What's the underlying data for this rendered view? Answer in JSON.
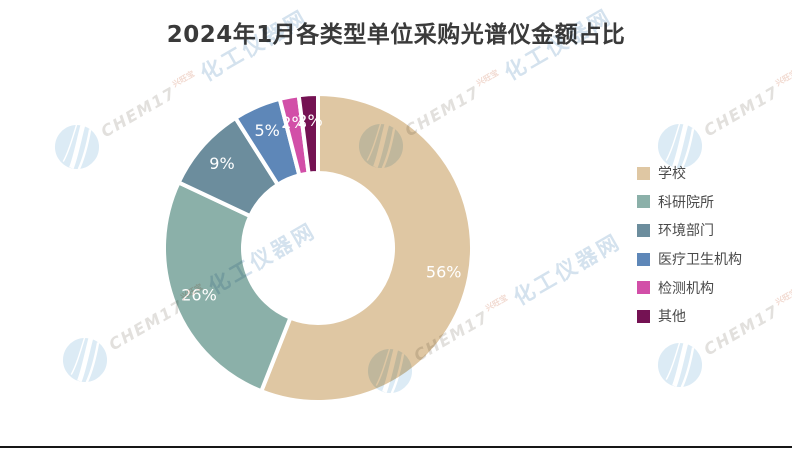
{
  "title": "2024年1月各类型单位采购光谱仪金额占比",
  "chart_data": {
    "type": "pie",
    "title": "2024年1月各类型单位采购光谱仪金额占比",
    "categories": [
      "学校",
      "科研院所",
      "环境部门",
      "医疗卫生机构",
      "检测机构",
      "其他"
    ],
    "values": [
      56,
      26,
      9,
      5,
      2,
      2
    ],
    "unit": "%",
    "labels": [
      "56%",
      "26%",
      "9%",
      "5%",
      "2%",
      "2%"
    ],
    "colors": [
      "#DFC7A3",
      "#8BB0A9",
      "#6C8D9D",
      "#5E87B8",
      "#D24FA8",
      "#741253"
    ],
    "donut": true,
    "inner_radius_ratio": 0.49,
    "start_angle": "top",
    "direction": "clockwise",
    "label_position": "inside",
    "label_color": "#FFFFFF",
    "legend_position": "right"
  },
  "legend": {
    "items": [
      "学校",
      "科研院所",
      "环境部门",
      "医疗卫生机构",
      "检测机构",
      "其他"
    ]
  },
  "watermark": {
    "brand": "CHEM17",
    "note": "兴旺宝",
    "site": "化工仪器网"
  }
}
